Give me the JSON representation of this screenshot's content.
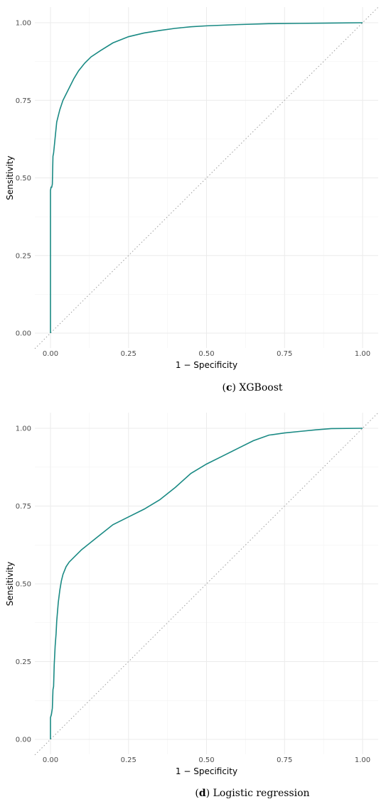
{
  "chart_data": [
    {
      "type": "line",
      "title": "",
      "xlabel": "1 − Specificity",
      "ylabel": "Sensitivity",
      "xlim": [
        0,
        1
      ],
      "ylim": [
        0,
        1
      ],
      "xticks": [
        "0.00",
        "0.25",
        "0.50",
        "0.75",
        "1.00"
      ],
      "yticks": [
        "0.00",
        "0.25",
        "0.50",
        "0.75",
        "1.00"
      ],
      "grid": true,
      "reference_line": "diagonal dotted",
      "caption": {
        "letter": "c",
        "text": "XGBoost"
      },
      "series": [
        {
          "color": "#1a8a84",
          "x": [
            0,
            0,
            0,
            0,
            0.002,
            0.004,
            0.006,
            0.008,
            0.01,
            0.012,
            0.015,
            0.018,
            0.02,
            0.025,
            0.03,
            0.04,
            0.05,
            0.06,
            0.075,
            0.09,
            0.11,
            0.13,
            0.16,
            0.2,
            0.25,
            0.3,
            0.35,
            0.4,
            0.45,
            0.5,
            0.6,
            0.7,
            0.8,
            0.9,
            1.0
          ],
          "y": [
            0,
            0.25,
            0.4,
            0.46,
            0.47,
            0.47,
            0.48,
            0.57,
            0.58,
            0.6,
            0.63,
            0.66,
            0.68,
            0.7,
            0.72,
            0.75,
            0.77,
            0.79,
            0.82,
            0.845,
            0.87,
            0.89,
            0.91,
            0.935,
            0.955,
            0.967,
            0.975,
            0.982,
            0.987,
            0.99,
            0.994,
            0.997,
            0.998,
            0.999,
            1.0
          ]
        }
      ]
    },
    {
      "type": "line",
      "title": "",
      "xlabel": "1 − Specificity",
      "ylabel": "Sensitivity",
      "xlim": [
        0,
        1
      ],
      "ylim": [
        0,
        1
      ],
      "xticks": [
        "0.00",
        "0.25",
        "0.50",
        "0.75",
        "1.00"
      ],
      "yticks": [
        "0.00",
        "0.25",
        "0.50",
        "0.75",
        "1.00"
      ],
      "grid": true,
      "reference_line": "diagonal dotted",
      "caption": {
        "letter": "d",
        "text": "Logistic regression"
      },
      "series": [
        {
          "color": "#1a8a84",
          "x": [
            0,
            0,
            0.003,
            0.006,
            0.008,
            0.01,
            0.012,
            0.015,
            0.018,
            0.02,
            0.025,
            0.03,
            0.035,
            0.04,
            0.05,
            0.06,
            0.08,
            0.1,
            0.15,
            0.2,
            0.25,
            0.3,
            0.35,
            0.4,
            0.45,
            0.5,
            0.55,
            0.6,
            0.65,
            0.7,
            0.75,
            0.8,
            0.85,
            0.9,
            1.0
          ],
          "y": [
            0,
            0.07,
            0.08,
            0.1,
            0.16,
            0.17,
            0.24,
            0.3,
            0.34,
            0.38,
            0.44,
            0.48,
            0.51,
            0.53,
            0.555,
            0.57,
            0.59,
            0.61,
            0.65,
            0.69,
            0.715,
            0.74,
            0.77,
            0.81,
            0.855,
            0.885,
            0.91,
            0.935,
            0.96,
            0.978,
            0.985,
            0.99,
            0.995,
            0.999,
            1.0
          ]
        }
      ]
    }
  ]
}
